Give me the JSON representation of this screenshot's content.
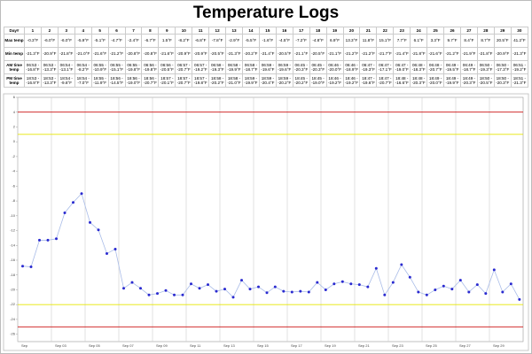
{
  "title": "Temperature Logs",
  "table": {
    "header": [
      "Day#",
      "1",
      "2",
      "3",
      "4",
      "5",
      "6",
      "7",
      "8",
      "9",
      "10",
      "11",
      "12",
      "13",
      "14",
      "15",
      "16",
      "17",
      "18",
      "19",
      "20",
      "21",
      "22",
      "23",
      "24",
      "25",
      "26",
      "27",
      "28",
      "29",
      "30"
    ],
    "rows": [
      [
        "Max temp",
        "-0.3°F",
        "-6.0°F",
        "-6.0°F",
        "-5.9°F",
        "-5.1°F",
        "-4.7°F",
        "-2.4°F",
        "-6.7°F",
        "1.5°F",
        "-8.2°F",
        "-6.8°F",
        "-7.8°F",
        "-2.9°F",
        "-5.5°F",
        "-1.6°F",
        "-4.5°F",
        "-7.2°F",
        "-4.8°F",
        "6.9°F",
        "13.3°F",
        "11.8°F",
        "15.1°F",
        "7.7°F",
        "6.1°F",
        "3.3°F",
        "9.7°F",
        "8.4°F",
        "8.7°F",
        "20.5°F",
        "41.2°F"
      ],
      [
        "Min temp",
        "-21.3°F",
        "-20.9°F",
        "-21.8°F",
        "-21.0°F",
        "-21.6°F",
        "-21.2°F",
        "-20.8°F",
        "-20.8°F",
        "-21.6°F",
        "-20.9°F",
        "-20.9°F",
        "-20.5°F",
        "-21.3°F",
        "-20.2°F",
        "-21.4°F",
        "-20.5°F",
        "-21.1°F",
        "-20.5°F",
        "-21.1°F",
        "-21.2°F",
        "-21.2°F",
        "-21.7°F",
        "-21.4°F",
        "-21.8°F",
        "-21.6°F",
        "-21.2°F",
        "-21.9°F",
        "-21.8°F",
        "-20.9°F",
        "-21.3°F"
      ],
      [
        "AM time temp",
        "06:53 - -16.8°F",
        "06:53 - -13.3°F",
        "06:54 - -13.1°F",
        "06:54 - -8.2°F",
        "06:55 - -10.9°F",
        "06:55 - -15.1°F",
        "06:55 - -19.8°F",
        "06:56 - -19.8°F",
        "06:56 - -20.5°F",
        "06:57 - -20.7°F",
        "06:57 - -19.2°F",
        "06:58 - -19.3°F",
        "06:58 - -19.9°F",
        "06:58 - -18.7°F",
        "06:59 - -19.6°F",
        "06:59 - -19.6°F",
        "06:45 - -20.3°F",
        "06:45 - -20.3°F",
        "06:46 - -20.0°F",
        "06:46 - -18.9°F",
        "06:47 - -19.3°F",
        "06:47 - -17.1°F",
        "06:47 - -19.0°F",
        "06:48 - -18.3°F",
        "06:48 - -20.7°F",
        "06:49 - -19.5°F",
        "06:49 - -18.7°F",
        "06:50 - -19.3°F",
        "06:50 - -17.3°F",
        "06:51 - -19.2°F"
      ],
      [
        "PM time temp",
        "18:53 - -16.9°F",
        "18:53 - -13.3°F",
        "18:54 - -9.6°F",
        "18:54 - -7.0°F",
        "18:55 - -11.9°F",
        "18:56 - -14.5°F",
        "18:56 - -19.0°F",
        "18:56 - -20.7°F",
        "18:57 - -20.1°F",
        "18:57 - -20.7°F",
        "18:57 - -19.8°F",
        "18:58 - -20.2°F",
        "18:58 - -21.0°F",
        "18:59 - -19.9°F",
        "18:59 - -20.4°F",
        "18:59 - -20.2°F",
        "18:45 - -20.2°F",
        "18:45 - -19.0°F",
        "18:46 - -19.2°F",
        "18:46 - -19.2°F",
        "18:47 - -19.6°F",
        "18:47 - -20.7°F",
        "18:48 - -16.6°F",
        "18:48 - -20.3°F",
        "18:49 - -20.0°F",
        "18:49 - -19.9°F",
        "18:49 - -20.3°F",
        "18:50 - -20.5°F",
        "18:50 - -20.3°F",
        "18:51 - -21.3°F"
      ]
    ]
  },
  "chart_data": {
    "type": "line",
    "x": [
      1.29,
      1.79,
      2.29,
      2.79,
      3.29,
      3.79,
      4.29,
      4.79,
      5.29,
      5.79,
      6.29,
      6.79,
      7.29,
      7.79,
      8.29,
      8.79,
      9.29,
      9.79,
      10.29,
      10.79,
      11.29,
      11.79,
      12.29,
      12.79,
      13.29,
      13.79,
      14.29,
      14.79,
      15.29,
      15.79,
      16.28,
      16.78,
      17.28,
      17.78,
      18.28,
      18.78,
      19.28,
      19.78,
      20.28,
      20.78,
      21.28,
      21.78,
      22.28,
      22.78,
      23.28,
      23.78,
      24.28,
      24.78,
      25.28,
      25.78,
      26.28,
      26.78,
      27.28,
      27.78,
      28.28,
      28.78,
      29.28,
      29.78,
      30.28,
      30.78
    ],
    "series": [
      {
        "color": "#2a2ad0",
        "line_color": "#a9bce8",
        "values": [
          -16.8,
          -16.9,
          -13.3,
          -13.3,
          -13.1,
          -9.6,
          -8.2,
          -7.0,
          -10.9,
          -11.9,
          -15.1,
          -14.5,
          -19.8,
          -19.0,
          -19.8,
          -20.7,
          -20.5,
          -20.1,
          -20.7,
          -20.7,
          -19.2,
          -19.8,
          -19.3,
          -20.2,
          -19.9,
          -21.0,
          -18.7,
          -19.9,
          -19.6,
          -20.4,
          -19.6,
          -20.2,
          -20.3,
          -20.2,
          -20.3,
          -19.0,
          -20.0,
          -19.2,
          -18.9,
          -19.2,
          -19.3,
          -19.6,
          -17.1,
          -20.7,
          -19.0,
          -16.6,
          -18.3,
          -20.3,
          -20.7,
          -20.0,
          -19.5,
          -19.9,
          -18.7,
          -20.3,
          -19.3,
          -20.5,
          -17.3,
          -20.3,
          -19.2,
          -21.3
        ]
      }
    ],
    "xlim": [
      1,
      31
    ],
    "xticks": [
      {
        "value": 1,
        "label": "Sep"
      },
      {
        "value": 3,
        "label": "Sep 03"
      },
      {
        "value": 5,
        "label": "Sep 05"
      },
      {
        "value": 7,
        "label": "Sep 07"
      },
      {
        "value": 9,
        "label": "Sep 09"
      },
      {
        "value": 11,
        "label": "Sep 11"
      },
      {
        "value": 13,
        "label": "Sep 13"
      },
      {
        "value": 15,
        "label": "Sep 15"
      },
      {
        "value": 17,
        "label": "Sep 17"
      },
      {
        "value": 19,
        "label": "Sep 19"
      },
      {
        "value": 21,
        "label": "Sep 21"
      },
      {
        "value": 23,
        "label": "Sep 23"
      },
      {
        "value": 25,
        "label": "Sep 25"
      },
      {
        "value": 27,
        "label": "Sep 27"
      },
      {
        "value": 29,
        "label": "Sep 29"
      }
    ],
    "ylim": [
      -27,
      6
    ],
    "yticks": [
      -26,
      -24,
      -22,
      -20,
      -18,
      -16,
      -14,
      -12,
      -10,
      -8,
      -6,
      -4,
      -2,
      0,
      2,
      4,
      6
    ],
    "limit_lines": [
      {
        "value": 4,
        "color": "#cc1111"
      },
      {
        "value": 1,
        "color": "#e6e600"
      },
      {
        "value": -22,
        "color": "#e6e600"
      },
      {
        "value": -25,
        "color": "#cc1111"
      }
    ],
    "grid": true
  }
}
